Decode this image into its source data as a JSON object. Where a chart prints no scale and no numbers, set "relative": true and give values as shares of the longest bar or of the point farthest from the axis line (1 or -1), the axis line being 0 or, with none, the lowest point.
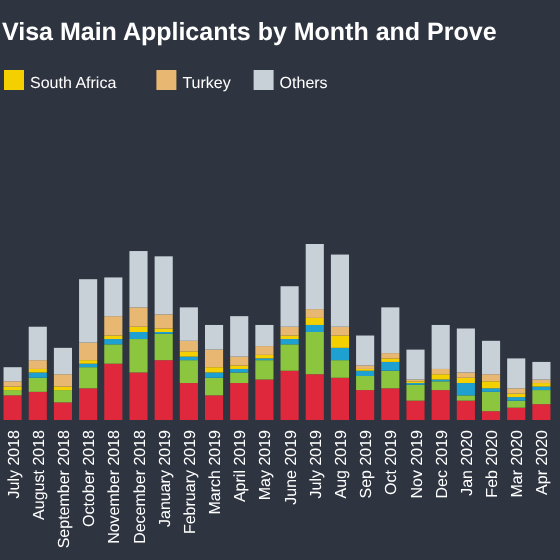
{
  "chart_data": {
    "type": "bar",
    "title": "Visa Main Applicants by Month and Prove",
    "stacked": true,
    "relative": true,
    "legend": "top left",
    "categories": [
      "July 2018",
      "August 2018",
      "September 2018",
      "October 2018",
      "November 2018",
      "December 2018",
      "January 2019",
      "February 2019",
      "March 2019",
      "April 2019",
      "May 2019",
      "June 2019",
      "July 2019",
      "Aug 2019",
      "Sep 2019",
      "Oct 2019",
      "Nov 2019",
      "Dec 2019",
      "Jan 2020",
      "Feb 2020",
      "Mar 2020",
      "Apr 2020"
    ],
    "series": [
      {
        "color": "#e0283c",
        "values": [
          0.14,
          0.16,
          0.1,
          0.18,
          0.32,
          0.27,
          0.34,
          0.21,
          0.14,
          0.21,
          0.23,
          0.28,
          0.26,
          0.24,
          0.17,
          0.18,
          0.11,
          0.17,
          0.11,
          0.05,
          0.07,
          0.09
        ]
      },
      {
        "color": "#8cc63f",
        "values": [
          0.03,
          0.08,
          0.07,
          0.12,
          0.11,
          0.19,
          0.15,
          0.13,
          0.1,
          0.06,
          0.11,
          0.15,
          0.24,
          0.1,
          0.08,
          0.1,
          0.09,
          0.05,
          0.03,
          0.11,
          0.04,
          0.08
        ]
      },
      {
        "color": "#1ea0d0",
        "values": [
          0,
          0.03,
          0,
          0.02,
          0.03,
          0.04,
          0.01,
          0.02,
          0.03,
          0.02,
          0.01,
          0.03,
          0.04,
          0.07,
          0.03,
          0.05,
          0.01,
          0.01,
          0.07,
          0.02,
          0.02,
          0.02
        ]
      },
      {
        "name": "South Africa",
        "color": "#f5d000",
        "values": [
          0.02,
          0.02,
          0.02,
          0.02,
          0.02,
          0.03,
          0.02,
          0.03,
          0.03,
          0.02,
          0.02,
          0.02,
          0.04,
          0.07,
          0.01,
          0.02,
          0.01,
          0.03,
          0.03,
          0.04,
          0.02,
          0.02
        ]
      },
      {
        "name": "Turkey",
        "color": "#e8b872",
        "values": [
          0.03,
          0.05,
          0.07,
          0.1,
          0.11,
          0.11,
          0.08,
          0.06,
          0.1,
          0.05,
          0.05,
          0.05,
          0.05,
          0.05,
          0.02,
          0.03,
          0.01,
          0.03,
          0.03,
          0.04,
          0.03,
          0.02
        ]
      },
      {
        "name": "Others",
        "color": "#c8d0d8",
        "values": [
          0.08,
          0.19,
          0.15,
          0.36,
          0.22,
          0.32,
          0.33,
          0.19,
          0.14,
          0.23,
          0.12,
          0.23,
          0.37,
          0.41,
          0.17,
          0.26,
          0.17,
          0.25,
          0.25,
          0.19,
          0.17,
          0.1
        ]
      }
    ]
  }
}
